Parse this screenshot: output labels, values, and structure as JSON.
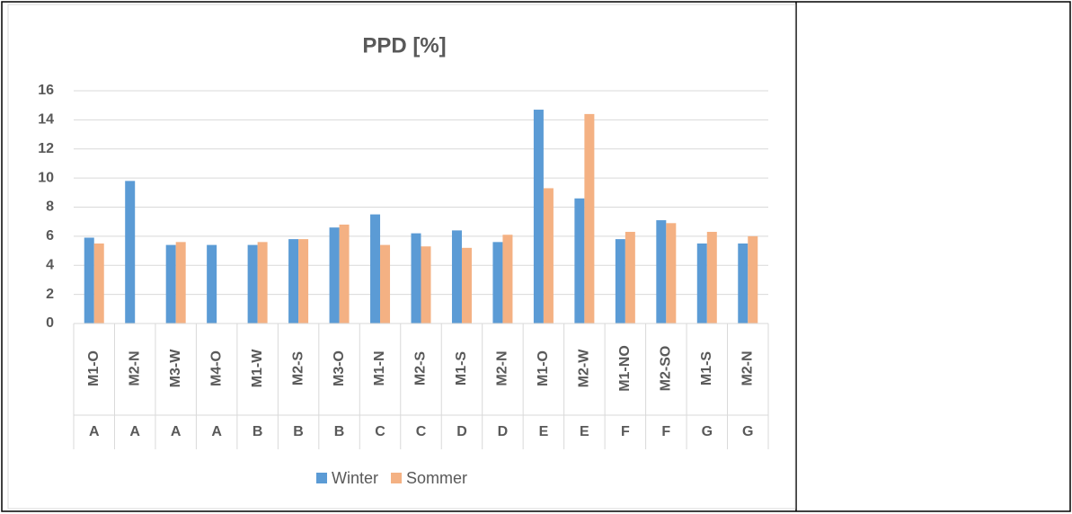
{
  "chart_data": {
    "type": "bar",
    "title": "PPD [%]",
    "categories": [
      "M1-O",
      "M2-N",
      "M3-W",
      "M4-O",
      "M1-W",
      "M2-S",
      "M3-O",
      "M1-N",
      "M2-S",
      "M1-S",
      "M2-N",
      "M1-O",
      "M2-W",
      "M1-NO",
      "M2-SO",
      "M1-S",
      "M2-N"
    ],
    "category_groups": [
      "A",
      "A",
      "A",
      "A",
      "B",
      "B",
      "B",
      "C",
      "C",
      "D",
      "D",
      "E",
      "E",
      "F",
      "F",
      "G",
      "G"
    ],
    "series": [
      {
        "name": "Winter",
        "color": "#5b9bd5",
        "values": [
          5.9,
          9.8,
          5.4,
          5.4,
          5.4,
          5.8,
          6.6,
          7.5,
          6.2,
          6.4,
          5.6,
          14.7,
          8.6,
          5.8,
          7.1,
          5.5,
          5.5
        ]
      },
      {
        "name": "Sommer",
        "color": "#f4b183",
        "values": [
          5.5,
          null,
          5.6,
          null,
          5.6,
          5.8,
          6.8,
          5.4,
          5.3,
          5.2,
          6.1,
          9.3,
          14.4,
          6.3,
          6.9,
          6.3,
          6.0
        ]
      }
    ],
    "ylim": [
      0,
      16
    ],
    "yticks": [
      0,
      2,
      4,
      6,
      8,
      10,
      12,
      14,
      16
    ],
    "grid": true,
    "legend": "bottom"
  }
}
